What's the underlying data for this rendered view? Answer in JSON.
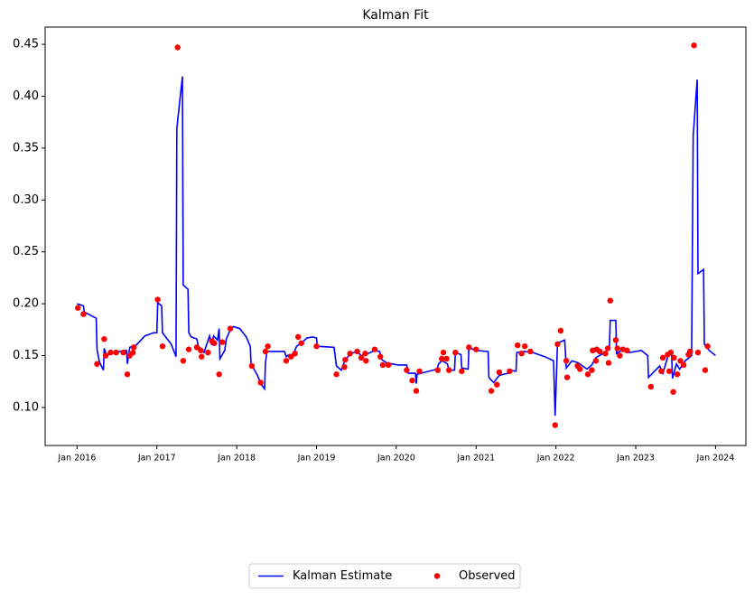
{
  "chart_data": {
    "type": "line",
    "title": "Kalman Fit",
    "xlim": [
      2015.6,
      2024.38
    ],
    "ylim": [
      0.0634,
      0.4666
    ],
    "xticks": [
      {
        "value": 2016,
        "label": "Jan 2016"
      },
      {
        "value": 2017,
        "label": "Jan 2017"
      },
      {
        "value": 2018,
        "label": "Jan 2018"
      },
      {
        "value": 2019,
        "label": "Jan 2019"
      },
      {
        "value": 2020,
        "label": "Jan 2020"
      },
      {
        "value": 2021,
        "label": "Jan 2021"
      },
      {
        "value": 2022,
        "label": "Jan 2022"
      },
      {
        "value": 2023,
        "label": "Jan 2023"
      },
      {
        "value": 2024,
        "label": "Jan 2024"
      }
    ],
    "yticks": [
      {
        "value": 0.1,
        "label": "0.10"
      },
      0.15,
      {
        "value": 0.2,
        "label": "0.20"
      },
      0.25,
      {
        "value": 0.3,
        "label": "0.30"
      },
      0.35,
      {
        "value": 0.4,
        "label": "0.40"
      },
      0.45
    ],
    "legend": "bottom",
    "series": [
      {
        "name": "Kalman Estimate",
        "type": "line",
        "color": "#0000ff",
        "x": [
          2016.0,
          2016.08,
          2016.09,
          2016.24,
          2016.25,
          2016.28,
          2016.33,
          2016.34,
          2016.37,
          2016.45,
          2016.62,
          2016.63,
          2016.66,
          2016.74,
          2016.85,
          2016.96,
          2017.0,
          2017.01,
          2017.06,
          2017.07,
          2017.18,
          2017.24,
          2017.25,
          2017.32,
          2017.33,
          2017.39,
          2017.4,
          2017.43,
          2017.5,
          2017.52,
          2017.59,
          2017.66,
          2017.69,
          2017.71,
          2017.76,
          2017.78,
          2017.79,
          2017.85,
          2017.87,
          2017.92,
          2017.96,
          2018.04,
          2018.12,
          2018.17,
          2018.18,
          2018.26,
          2018.31,
          2018.35,
          2018.36,
          2018.38,
          2018.6,
          2018.62,
          2018.66,
          2018.71,
          2018.75,
          2018.81,
          2018.88,
          2018.95,
          2019.0,
          2019.01,
          2019.22,
          2019.25,
          2019.31,
          2019.36,
          2019.43,
          2019.51,
          2019.56,
          2019.62,
          2019.73,
          2019.79,
          2019.82,
          2019.88,
          2020.02,
          2020.13,
          2020.15,
          2020.24,
          2020.25,
          2020.26,
          2020.51,
          2020.53,
          2020.57,
          2020.6,
          2020.64,
          2020.66,
          2020.73,
          2020.74,
          2020.81,
          2020.82,
          2020.9,
          2020.91,
          2020.99,
          2021.15,
          2021.16,
          2021.22,
          2021.26,
          2021.29,
          2021.4,
          2021.41,
          2021.5,
          2021.51,
          2021.6,
          2021.71,
          2021.86,
          2021.97,
          2021.99,
          2022.02,
          2022.05,
          2022.11,
          2022.13,
          2022.2,
          2022.28,
          2022.39,
          2022.45,
          2022.5,
          2022.59,
          2022.67,
          2022.68,
          2022.75,
          2022.76,
          2022.84,
          2022.92,
          2023.07,
          2023.15,
          2023.16,
          2023.3,
          2023.34,
          2023.41,
          2023.45,
          2023.46,
          2023.51,
          2023.55,
          2023.62,
          2023.7,
          2023.72,
          2023.77,
          2023.78,
          2023.85,
          2023.86,
          2023.92,
          2024.0
        ],
        "values": [
          0.2,
          0.198,
          0.192,
          0.186,
          0.156,
          0.144,
          0.136,
          0.157,
          0.15,
          0.153,
          0.155,
          0.142,
          0.158,
          0.16,
          0.169,
          0.172,
          0.172,
          0.201,
          0.198,
          0.172,
          0.161,
          0.149,
          0.369,
          0.419,
          0.218,
          0.214,
          0.172,
          0.168,
          0.166,
          0.159,
          0.153,
          0.169,
          0.16,
          0.169,
          0.165,
          0.176,
          0.147,
          0.155,
          0.166,
          0.175,
          0.178,
          0.176,
          0.168,
          0.159,
          0.142,
          0.131,
          0.122,
          0.118,
          0.143,
          0.154,
          0.154,
          0.149,
          0.151,
          0.151,
          0.159,
          0.162,
          0.167,
          0.168,
          0.167,
          0.159,
          0.158,
          0.14,
          0.136,
          0.146,
          0.152,
          0.154,
          0.15,
          0.151,
          0.155,
          0.154,
          0.146,
          0.143,
          0.141,
          0.141,
          0.133,
          0.133,
          0.123,
          0.132,
          0.137,
          0.142,
          0.145,
          0.144,
          0.142,
          0.136,
          0.136,
          0.153,
          0.151,
          0.138,
          0.137,
          0.158,
          0.155,
          0.154,
          0.129,
          0.124,
          0.128,
          0.131,
          0.133,
          0.136,
          0.135,
          0.153,
          0.154,
          0.153,
          0.149,
          0.145,
          0.092,
          0.163,
          0.163,
          0.165,
          0.138,
          0.145,
          0.143,
          0.137,
          0.141,
          0.148,
          0.152,
          0.157,
          0.184,
          0.184,
          0.152,
          0.156,
          0.153,
          0.155,
          0.15,
          0.129,
          0.14,
          0.133,
          0.151,
          0.151,
          0.128,
          0.142,
          0.137,
          0.145,
          0.15,
          0.362,
          0.416,
          0.229,
          0.233,
          0.161,
          0.155,
          0.15
        ]
      },
      {
        "name": "Observed",
        "type": "scatter",
        "color": "#ff0000",
        "x": [
          2016.01,
          2016.08,
          2016.25,
          2016.34,
          2016.36,
          2016.42,
          2016.49,
          2016.58,
          2016.63,
          2016.66,
          2016.7,
          2016.71,
          2017.01,
          2017.07,
          2017.26,
          2017.33,
          2017.4,
          2017.5,
          2017.55,
          2017.56,
          2017.64,
          2017.69,
          2017.72,
          2017.78,
          2017.82,
          2017.92,
          2018.19,
          2018.3,
          2018.36,
          2018.39,
          2018.62,
          2018.68,
          2018.73,
          2018.77,
          2018.81,
          2019.0,
          2019.25,
          2019.35,
          2019.36,
          2019.42,
          2019.51,
          2019.56,
          2019.61,
          2019.62,
          2019.73,
          2019.8,
          2019.83,
          2019.9,
          2020.13,
          2020.2,
          2020.25,
          2020.29,
          2020.52,
          2020.57,
          2020.59,
          2020.63,
          2020.66,
          2020.74,
          2020.82,
          2020.91,
          2021.0,
          2021.19,
          2021.26,
          2021.29,
          2021.42,
          2021.52,
          2021.57,
          2021.61,
          2021.68,
          2021.99,
          2022.02,
          2022.06,
          2022.13,
          2022.14,
          2022.27,
          2022.3,
          2022.4,
          2022.45,
          2022.46,
          2022.5,
          2022.51,
          2022.55,
          2022.62,
          2022.65,
          2022.66,
          2022.68,
          2022.75,
          2022.77,
          2022.8,
          2022.84,
          2022.89,
          2023.19,
          2023.32,
          2023.34,
          2023.4,
          2023.42,
          2023.44,
          2023.47,
          2023.48,
          2023.52,
          2023.56,
          2023.6,
          2023.66,
          2023.68,
          2023.73,
          2023.78,
          2023.87,
          2023.9
        ],
        "values": [
          0.196,
          0.19,
          0.142,
          0.166,
          0.15,
          0.153,
          0.153,
          0.153,
          0.132,
          0.15,
          0.153,
          0.158,
          0.204,
          0.159,
          0.447,
          0.145,
          0.156,
          0.158,
          0.155,
          0.149,
          0.153,
          0.164,
          0.162,
          0.132,
          0.163,
          0.176,
          0.14,
          0.124,
          0.154,
          0.159,
          0.145,
          0.149,
          0.152,
          0.168,
          0.162,
          0.159,
          0.132,
          0.139,
          0.146,
          0.152,
          0.154,
          0.148,
          0.152,
          0.145,
          0.156,
          0.149,
          0.141,
          0.141,
          0.136,
          0.126,
          0.116,
          0.135,
          0.136,
          0.147,
          0.153,
          0.147,
          0.136,
          0.153,
          0.135,
          0.158,
          0.156,
          0.116,
          0.122,
          0.134,
          0.135,
          0.16,
          0.152,
          0.159,
          0.154,
          0.083,
          0.161,
          0.174,
          0.145,
          0.129,
          0.14,
          0.137,
          0.132,
          0.136,
          0.155,
          0.145,
          0.156,
          0.154,
          0.152,
          0.157,
          0.143,
          0.203,
          0.165,
          0.157,
          0.15,
          0.156,
          0.155,
          0.12,
          0.135,
          0.148,
          0.151,
          0.135,
          0.153,
          0.115,
          0.148,
          0.132,
          0.145,
          0.141,
          0.151,
          0.154,
          0.449,
          0.153,
          0.136,
          0.159
        ]
      }
    ]
  }
}
